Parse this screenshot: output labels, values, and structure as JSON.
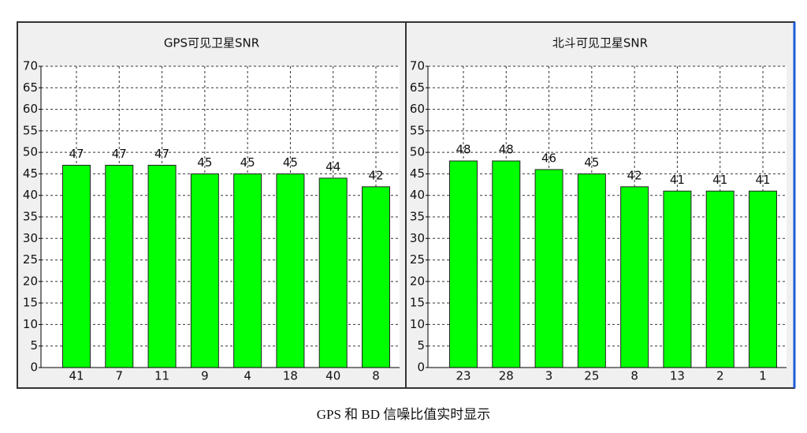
{
  "chart_data": [
    {
      "type": "bar",
      "title": "GPS可见卫星SNR",
      "categories": [
        "41",
        "7",
        "11",
        "9",
        "4",
        "18",
        "40",
        "8"
      ],
      "values": [
        47,
        47,
        47,
        45,
        45,
        45,
        44,
        42
      ],
      "color": "#00ff00",
      "ylim": [
        0,
        70
      ],
      "yticks": [
        0,
        5,
        10,
        15,
        20,
        25,
        30,
        35,
        40,
        45,
        50,
        55,
        60,
        65,
        70
      ],
      "grid": true
    },
    {
      "type": "bar",
      "title": "北斗可见卫星SNR",
      "categories": [
        "23",
        "28",
        "3",
        "25",
        "8",
        "13",
        "2",
        "1"
      ],
      "values": [
        48,
        48,
        46,
        45,
        42,
        41,
        41,
        41
      ],
      "color": "#00ff00",
      "ylim": [
        0,
        70
      ],
      "yticks": [
        0,
        5,
        10,
        15,
        20,
        25,
        30,
        35,
        40,
        45,
        50,
        55,
        60,
        65,
        70
      ],
      "grid": true
    }
  ],
  "caption": "GPS 和 BD 信噪比值实时显示"
}
